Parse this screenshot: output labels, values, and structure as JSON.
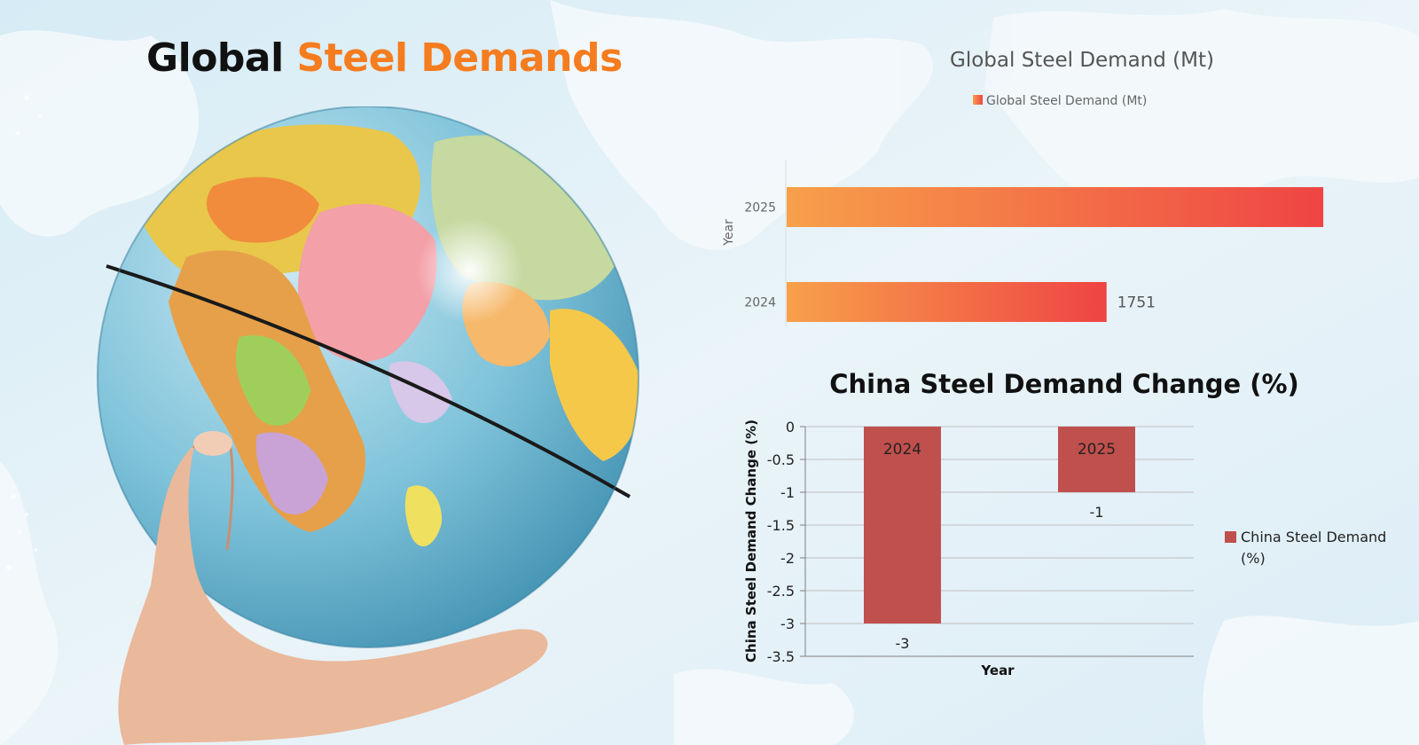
{
  "headline": {
    "word1": "Global",
    "word2": "Steel Demands",
    "word1_color": "#111111",
    "word2_color": "#f57c1f"
  },
  "chart_data": [
    {
      "type": "bar",
      "orientation": "horizontal",
      "title": "Global Steel Demand (Mt)",
      "ylabel": "Year",
      "categories": [
        "2025",
        "2024"
      ],
      "series": [
        {
          "name": "Global Steel Demand (Mt)",
          "values": [
            1772,
            1751
          ],
          "data_labels": [
            null,
            "1751"
          ]
        }
      ],
      "xlim": [
        1720,
        1775
      ],
      "legend": "top",
      "grid": false,
      "colors": {
        "start": "#f7a04a",
        "end": "#ef4444"
      }
    },
    {
      "type": "bar",
      "title": "China Steel Demand Change (%)",
      "xlabel": "Year",
      "ylabel": "China Steel Demand Change (%)",
      "categories": [
        "2024",
        "2025"
      ],
      "series": [
        {
          "name": "China Steel Demand (%)",
          "values": [
            -3,
            -1
          ],
          "data_labels": [
            "-3",
            "-1"
          ]
        }
      ],
      "ylim": [
        -3.5,
        0
      ],
      "yticks": [
        "0",
        "-0.5",
        "-1",
        "-1.5",
        "-2",
        "-2.5",
        "-3",
        "-3.5"
      ],
      "legend": "right",
      "legend_lines": [
        "China Steel Demand",
        "(%)"
      ],
      "grid": true,
      "colors": {
        "bar": "#c0504d"
      }
    }
  ]
}
